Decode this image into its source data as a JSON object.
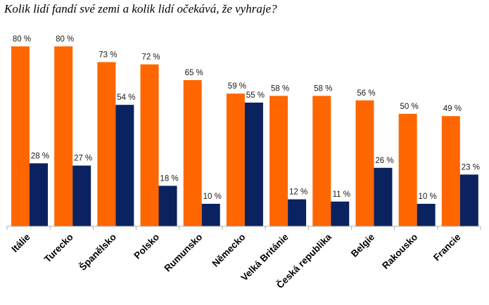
{
  "chart_data": {
    "type": "bar",
    "title": "Kolik lidí fandí své zemi a kolik lidí očekává, že vyhraje?",
    "categories": [
      "Itálie",
      "Turecko",
      "Španělsko",
      "Polsko",
      "Rumunsko",
      "Německo",
      "Velká Británie",
      "Česká republika",
      "Belgie",
      "Rakousko",
      "Francie"
    ],
    "series": [
      {
        "values": [
          80,
          80,
          73,
          72,
          65,
          59,
          58,
          58,
          56,
          50,
          49
        ],
        "color": "#FF6600"
      },
      {
        "values": [
          28,
          27,
          54,
          18,
          10,
          55,
          12,
          11,
          26,
          10,
          23
        ],
        "color": "#0B2260"
      }
    ],
    "value_suffix": " %",
    "ylim": [
      0,
      80
    ],
    "grid": false,
    "legend": "none"
  }
}
